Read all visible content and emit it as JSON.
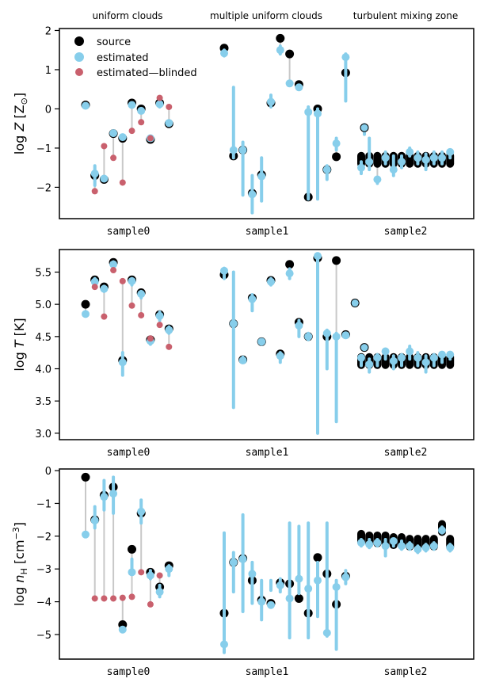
{
  "colors": {
    "source": "#000000",
    "estimated": "#87ceeb",
    "blinded": "#c9606d",
    "connector": "#c8c8c8"
  },
  "column_titles": [
    "uniform clouds",
    "multiple uniform clouds",
    "turbulent mixing zone"
  ],
  "samples": [
    "sample0",
    "sample1",
    "sample2"
  ],
  "legend": {
    "source": "source",
    "estimated": "estimated",
    "blinded": "estimated—blinded"
  },
  "chart_data": [
    {
      "type": "scatter",
      "ylabel_main": "log ",
      "ylabel_var": "Z",
      "ylabel_unit": " [Z",
      "ylabel_sub": "⊙",
      "ylabel_end": "]",
      "ylim": [
        -2.8,
        2.05
      ],
      "yticks": [
        -2,
        -1,
        0,
        1,
        2
      ],
      "ytick_labels": [
        "−2",
        "−1",
        "0",
        "1",
        "2"
      ],
      "groups": [
        {
          "x": [
            0,
            1,
            2,
            3,
            4,
            5,
            6,
            7,
            8,
            9
          ],
          "source": [
            0.1,
            -1.7,
            -1.8,
            -0.63,
            -0.75,
            0.15,
            0.0,
            -0.78,
            0.15,
            -0.38
          ],
          "estimated": [
            0.08,
            -1.65,
            -1.78,
            -0.62,
            -0.72,
            0.1,
            -0.05,
            -0.75,
            0.12,
            -0.36
          ],
          "estimated_err": [
            [
              0.08,
              0.08
            ],
            [
              -1.95,
              -1.45
            ],
            [
              -1.8,
              -1.76
            ],
            [
              -0.64,
              -0.6
            ],
            [
              -0.75,
              -0.7
            ],
            [
              0.08,
              0.12
            ],
            [
              -0.08,
              -0.02
            ],
            [
              -0.78,
              -0.72
            ],
            [
              0.05,
              0.2
            ],
            [
              -0.4,
              -0.33
            ]
          ],
          "blinded": [
            null,
            -2.1,
            -0.95,
            -1.25,
            -1.88,
            -0.56,
            -0.34,
            -0.75,
            0.28,
            0.05
          ]
        },
        {
          "x": [
            0,
            1,
            2,
            3,
            4,
            5,
            6,
            7,
            8,
            9,
            10,
            11,
            12,
            13
          ],
          "source": [
            1.55,
            -1.2,
            -1.05,
            -2.15,
            -1.68,
            0.15,
            1.8,
            1.4,
            0.62,
            -2.25,
            0.0,
            -1.55,
            -1.22,
            0.92
          ],
          "estimated": [
            1.42,
            -1.05,
            -1.05,
            -2.18,
            -1.72,
            0.18,
            1.5,
            0.65,
            0.55,
            -0.08,
            -0.12,
            -1.55,
            -0.88,
            1.32
          ],
          "estimated_err": [
            [
              1.35,
              1.5
            ],
            [
              -1.25,
              0.55
            ],
            [
              -2.2,
              -0.85
            ],
            [
              -2.65,
              -1.7
            ],
            [
              -2.35,
              -1.25
            ],
            [
              0.05,
              0.35
            ],
            [
              1.4,
              1.6
            ],
            [
              0.6,
              0.7
            ],
            [
              0.5,
              0.6
            ],
            [
              -2.3,
              0.05
            ],
            [
              -2.3,
              0.0
            ],
            [
              -1.8,
              -1.45
            ],
            [
              -1.05,
              -0.75
            ],
            [
              0.2,
              1.4
            ]
          ],
          "blinded": [],
          "extra_estimated": [
            [
              15,
              -0.48,
              -0.65,
              -0.4
            ]
          ]
        },
        {
          "x": [
            0,
            1,
            2,
            3,
            4,
            5,
            6,
            7,
            8,
            9,
            10,
            11
          ],
          "source": [
            -1.3,
            -1.3,
            -1.3,
            -1.3,
            -1.3,
            -1.3,
            -1.3,
            -1.3,
            -1.3,
            -1.3,
            -1.3,
            -1.3
          ],
          "estimated": [
            -1.5,
            -1.35,
            -1.8,
            -1.25,
            -1.55,
            -1.35,
            -1.1,
            -1.25,
            -1.3,
            -1.25,
            -1.25,
            -1.1
          ],
          "estimated_err": [
            [
              -1.65,
              -1.35
            ],
            [
              -1.55,
              -0.75
            ],
            [
              -1.9,
              -1.75
            ],
            [
              -1.4,
              -1.1
            ],
            [
              -1.7,
              -1.2
            ],
            [
              -1.5,
              -1.2
            ],
            [
              -1.2,
              -1.0
            ],
            [
              -1.4,
              -1.1
            ],
            [
              -1.55,
              -1.15
            ],
            [
              -1.4,
              -1.1
            ],
            [
              -1.4,
              -1.1
            ],
            [
              -1.25,
              -1.05
            ]
          ],
          "blinded": []
        }
      ]
    },
    {
      "type": "scatter",
      "ylabel_main": "log ",
      "ylabel_var": "T",
      "ylabel_unit": " [K]",
      "ylim": [
        2.9,
        5.85
      ],
      "yticks": [
        3.0,
        3.5,
        4.0,
        4.5,
        5.0,
        5.5
      ],
      "ytick_labels": [
        "3.0",
        "3.5",
        "4.0",
        "4.5",
        "5.0",
        "5.5"
      ],
      "groups": [
        {
          "x": [
            0,
            1,
            2,
            3,
            4,
            5,
            6,
            7,
            8,
            9
          ],
          "source": [
            5.0,
            5.38,
            5.27,
            5.65,
            4.13,
            5.38,
            5.18,
            4.45,
            4.84,
            4.62
          ],
          "estimated": [
            4.85,
            5.35,
            5.24,
            5.62,
            4.1,
            5.36,
            5.16,
            4.43,
            4.82,
            4.6
          ],
          "estimated_err": [
            [
              4.85,
              4.85
            ],
            [
              5.3,
              5.4
            ],
            [
              5.2,
              5.28
            ],
            [
              5.58,
              5.66
            ],
            [
              3.9,
              4.25
            ],
            [
              5.3,
              5.4
            ],
            [
              5.1,
              5.2
            ],
            [
              4.38,
              4.48
            ],
            [
              4.75,
              4.88
            ],
            [
              4.55,
              4.65
            ]
          ],
          "blinded": [
            null,
            5.27,
            4.81,
            5.53,
            5.36,
            4.98,
            4.83,
            4.47,
            4.68,
            4.34
          ]
        },
        {
          "x": [
            0,
            1,
            2,
            3,
            4,
            5,
            6,
            7,
            8,
            9,
            10,
            11,
            12,
            13
          ],
          "source": [
            5.46,
            4.7,
            4.14,
            5.1,
            4.42,
            5.37,
            4.23,
            5.62,
            4.72,
            4.5,
            5.72,
            4.5,
            5.68,
            4.53
          ],
          "estimated": [
            5.52,
            4.7,
            4.13,
            5.08,
            4.42,
            5.35,
            4.2,
            5.48,
            4.67,
            4.5,
            5.75,
            4.55,
            4.5,
            4.52
          ],
          "estimated_err": [
            [
              5.4,
              5.56
            ],
            [
              3.4,
              5.5
            ],
            [
              4.1,
              4.18
            ],
            [
              4.9,
              5.15
            ],
            [
              4.38,
              4.45
            ],
            [
              5.3,
              5.4
            ],
            [
              4.1,
              4.25
            ],
            [
              5.4,
              5.55
            ],
            [
              4.5,
              4.75
            ],
            [
              4.45,
              4.55
            ],
            [
              3.0,
              5.78
            ],
            [
              4.0,
              4.6
            ],
            [
              3.18,
              4.55
            ],
            [
              4.5,
              4.55
            ]
          ],
          "blinded": [],
          "extra_estimated": [
            [
              14,
              5.02,
              5.02,
              5.02
            ],
            [
              15,
              4.33,
              4.33,
              4.33
            ]
          ]
        },
        {
          "x": [
            0,
            1,
            2,
            3,
            4,
            5,
            6,
            7,
            8,
            9,
            10,
            11
          ],
          "source": [
            4.12,
            4.12,
            4.12,
            4.12,
            4.12,
            4.12,
            4.12,
            4.12,
            4.12,
            4.12,
            4.12,
            4.12
          ],
          "estimated": [
            4.17,
            4.07,
            4.17,
            4.27,
            4.12,
            4.17,
            4.27,
            4.17,
            4.1,
            4.17,
            4.22,
            4.22
          ],
          "estimated_err": [
            [
              4.05,
              4.2
            ],
            [
              3.95,
              4.15
            ],
            [
              4.05,
              4.22
            ],
            [
              4.15,
              4.3
            ],
            [
              4.0,
              4.2
            ],
            [
              4.05,
              4.22
            ],
            [
              4.15,
              4.35
            ],
            [
              4.05,
              4.25
            ],
            [
              3.95,
              4.2
            ],
            [
              4.05,
              4.22
            ],
            [
              4.1,
              4.25
            ],
            [
              4.15,
              4.25
            ]
          ],
          "blinded": []
        }
      ]
    },
    {
      "type": "scatter",
      "ylabel_main": "log ",
      "ylabel_var": "n",
      "ylabel_sub": "H",
      "ylabel_unit": " [cm",
      "ylabel_sup": "−3",
      "ylabel_end": "]",
      "ylim": [
        -5.75,
        0.05
      ],
      "yticks": [
        -5,
        -4,
        -3,
        -2,
        -1,
        0
      ],
      "ytick_labels": [
        "−5",
        "−4",
        "−3",
        "−2",
        "−1",
        "0"
      ],
      "groups": [
        {
          "x": [
            0,
            1,
            2,
            3,
            4,
            5,
            6,
            7,
            8,
            9
          ],
          "source": [
            -0.2,
            -1.5,
            -0.75,
            -0.5,
            -4.7,
            -2.4,
            -1.3,
            -3.1,
            -3.55,
            -2.9
          ],
          "estimated": [
            -1.95,
            -1.52,
            -0.8,
            -0.7,
            -4.85,
            -3.1,
            -1.25,
            -3.2,
            -3.7,
            -3.0
          ],
          "estimated_err": [
            [
              -1.95,
              -1.95
            ],
            [
              -1.75,
              -1.1
            ],
            [
              -1.2,
              -0.3
            ],
            [
              -1.3,
              -0.2
            ],
            [
              -4.9,
              -4.8
            ],
            [
              -3.15,
              -2.7
            ],
            [
              -1.6,
              -0.9
            ],
            [
              -3.3,
              -3.05
            ],
            [
              -3.85,
              -3.5
            ],
            [
              -3.2,
              -2.9
            ]
          ],
          "blinded": [
            null,
            -3.9,
            -3.9,
            -3.9,
            -3.88,
            -3.85,
            -3.1,
            -4.08,
            -3.2,
            null
          ]
        },
        {
          "x": [
            0,
            1,
            2,
            3,
            4,
            5,
            6,
            7,
            8,
            9,
            10,
            11,
            12,
            13
          ],
          "source": [
            -4.35,
            -2.8,
            -2.68,
            -3.35,
            -3.95,
            -4.05,
            -3.42,
            -3.45,
            -3.9,
            -4.35,
            -2.65,
            -3.15,
            -4.08,
            -3.22
          ],
          "estimated": [
            -5.3,
            -2.8,
            -2.7,
            -3.15,
            -4.0,
            -4.1,
            -3.5,
            -3.9,
            -3.3,
            -3.6,
            -3.35,
            -4.95,
            -3.55,
            -3.25
          ],
          "estimated_err": [
            [
              -5.55,
              -1.9
            ],
            [
              -3.7,
              -2.5
            ],
            [
              -4.3,
              -1.35
            ],
            [
              -4.05,
              -2.8
            ],
            [
              -4.55,
              -3.35
            ],
            [
              -3.65,
              -3.35
            ],
            [
              -3.7,
              -3.3
            ],
            [
              -5.1,
              -1.6
            ],
            [
              -3.75,
              -1.7
            ],
            [
              -5.1,
              -1.6
            ],
            [
              -4.45,
              -2.8
            ],
            [
              -5.05,
              -1.6
            ],
            [
              -5.45,
              -3.35
            ],
            [
              -3.45,
              -3.05
            ]
          ],
          "blinded": []
        },
        {
          "x": [
            0,
            1,
            2,
            3,
            4,
            5,
            6,
            7,
            8,
            9,
            10,
            11
          ],
          "source": [
            -2.05,
            -2.1,
            -2.1,
            -2.1,
            -2.15,
            -2.15,
            -2.2,
            -2.2,
            -2.2,
            -2.2,
            -1.75,
            -2.2
          ],
          "estimated": [
            -2.2,
            -2.25,
            -2.2,
            -2.3,
            -2.15,
            -2.3,
            -2.3,
            -2.4,
            -2.35,
            -2.3,
            -1.82,
            -2.35
          ],
          "estimated_err": [
            [
              -2.3,
              -2.1
            ],
            [
              -2.35,
              -2.1
            ],
            [
              -2.3,
              -2.1
            ],
            [
              -2.6,
              -2.1
            ],
            [
              -2.3,
              -2.1
            ],
            [
              -2.4,
              -2.15
            ],
            [
              -2.4,
              -2.2
            ],
            [
              -2.5,
              -2.3
            ],
            [
              -2.45,
              -2.25
            ],
            [
              -2.4,
              -2.2
            ],
            [
              -1.9,
              -1.72
            ],
            [
              -2.45,
              -2.25
            ]
          ],
          "blinded": []
        }
      ]
    }
  ]
}
